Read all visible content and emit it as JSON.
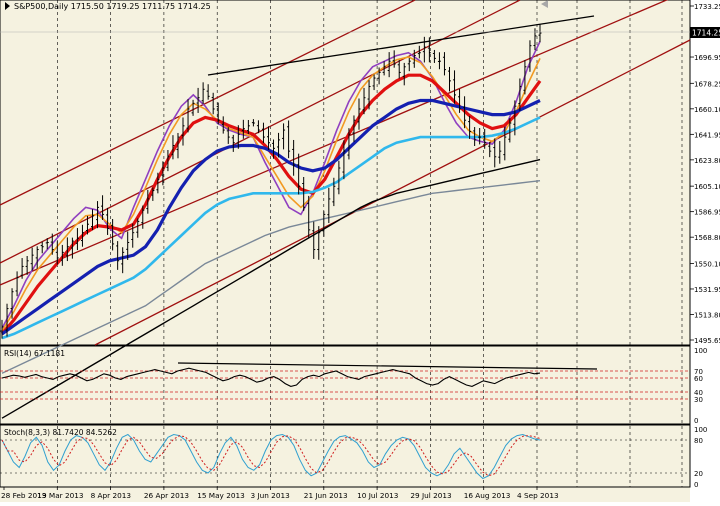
{
  "colors": {
    "background": "#f5f2e0",
    "axis_panel": "#ffffff",
    "grid": "#000000",
    "candle": "#000000",
    "sma_purple": "#9040c0",
    "sma_orange": "#f29a22",
    "sma_red": "#e01010",
    "sma_blue": "#1420b0",
    "sma_cyan": "#30b8ec",
    "sma_gray": "#7a8898",
    "sma_black": "#000000",
    "channel": "#a01010",
    "trendline": "#000000",
    "rsi": "#000000",
    "rsi_levels": "#d02020",
    "stoch_main": "#30a0d0",
    "stoch_signal": "#d02020"
  },
  "chart_data": [
    {
      "type": "candlestick",
      "title": "S&P500,Daily  1715.50 1719.25 1711.75 1714.25",
      "ylim": [
        1495.65,
        1733.25
      ],
      "y_tick_labels": [
        "1733.25",
        "1714.25",
        "1696.95",
        "1678.25",
        "1660.10",
        "1641.95",
        "1623.80",
        "1605.10",
        "1586.95",
        "1568.80",
        "1550.10",
        "1531.95",
        "1513.80",
        "1495.65"
      ],
      "current_price_label": "1714.25",
      "x_tick_labels": [
        "28 Feb 2013",
        "19 Mar 2013",
        "8 Apr 2013",
        "26 Apr 2013",
        "15 May 2013",
        "3 Jun 2013",
        "21 Jun 2013",
        "10 Jul 2013",
        "29 Jul 2013",
        "16 Aug 2013",
        "4 Sep 2013"
      ],
      "close_approx": [
        1505,
        1518,
        1530,
        1540,
        1548,
        1552,
        1556,
        1560,
        1562,
        1565,
        1560,
        1554,
        1558,
        1562,
        1566,
        1568,
        1572,
        1578,
        1584,
        1590,
        1585,
        1575,
        1564,
        1552,
        1558,
        1565,
        1572,
        1580,
        1588,
        1596,
        1602,
        1610,
        1618,
        1626,
        1634,
        1640,
        1648,
        1660,
        1664,
        1668,
        1674,
        1669,
        1660,
        1652,
        1645,
        1640,
        1636,
        1642,
        1646,
        1648,
        1650,
        1645,
        1640,
        1636,
        1632,
        1638,
        1645,
        1630,
        1620,
        1605,
        1590,
        1574,
        1560,
        1572,
        1585,
        1596,
        1605,
        1618,
        1630,
        1642,
        1652,
        1660,
        1668,
        1676,
        1682,
        1686,
        1690,
        1694,
        1692,
        1686,
        1690,
        1694,
        1698,
        1700,
        1704,
        1700,
        1696,
        1694,
        1688,
        1680,
        1670,
        1660,
        1652,
        1644,
        1638,
        1640,
        1636,
        1630,
        1626,
        1630,
        1640,
        1650,
        1662,
        1676,
        1690,
        1705,
        1712,
        1714
      ],
      "moving_averages_approx": [
        {
          "color": "#9040c0",
          "values": [
            1504,
            1520,
            1538,
            1552,
            1562,
            1572,
            1582,
            1590,
            1588,
            1575,
            1568,
            1590,
            1610,
            1630,
            1648,
            1662,
            1670,
            1662,
            1650,
            1645,
            1642,
            1640,
            1622,
            1606,
            1590,
            1585,
            1600,
            1622,
            1645,
            1665,
            1680,
            1690,
            1694,
            1698,
            1700,
            1694,
            1682,
            1665,
            1650,
            1640,
            1637,
            1635,
            1645,
            1665,
            1690,
            1708
          ]
        },
        {
          "color": "#f29a22",
          "values": [
            1502,
            1516,
            1532,
            1546,
            1556,
            1566,
            1576,
            1584,
            1585,
            1578,
            1572,
            1585,
            1604,
            1624,
            1642,
            1656,
            1664,
            1660,
            1652,
            1646,
            1643,
            1640,
            1626,
            1612,
            1598,
            1590,
            1598,
            1616,
            1638,
            1658,
            1674,
            1684,
            1690,
            1695,
            1697,
            1693,
            1683,
            1670,
            1656,
            1645,
            1640,
            1637,
            1643,
            1658,
            1678,
            1696
          ]
        },
        {
          "color": "#e01010",
          "values": [
            1500,
            1510,
            1522,
            1534,
            1544,
            1554,
            1564,
            1572,
            1577,
            1576,
            1574,
            1578,
            1592,
            1610,
            1626,
            1640,
            1650,
            1654,
            1652,
            1648,
            1645,
            1642,
            1634,
            1624,
            1612,
            1603,
            1600,
            1610,
            1626,
            1642,
            1656,
            1666,
            1674,
            1680,
            1684,
            1684,
            1680,
            1672,
            1664,
            1656,
            1650,
            1646,
            1648,
            1656,
            1668,
            1680
          ]
        },
        {
          "color": "#1420b0",
          "values": [
            1500,
            1506,
            1512,
            1518,
            1524,
            1530,
            1536,
            1542,
            1548,
            1552,
            1554,
            1556,
            1562,
            1574,
            1590,
            1604,
            1616,
            1624,
            1630,
            1633,
            1634,
            1634,
            1632,
            1628,
            1622,
            1618,
            1616,
            1618,
            1624,
            1632,
            1640,
            1648,
            1654,
            1660,
            1664,
            1666,
            1666,
            1664,
            1662,
            1660,
            1658,
            1656,
            1656,
            1658,
            1662,
            1666
          ]
        },
        {
          "color": "#30b8ec",
          "values": [
            1497,
            1500,
            1504,
            1508,
            1512,
            1516,
            1520,
            1524,
            1528,
            1532,
            1536,
            1540,
            1546,
            1554,
            1562,
            1570,
            1578,
            1586,
            1592,
            1596,
            1598,
            1600,
            1600,
            1600,
            1600,
            1600,
            1601,
            1604,
            1608,
            1614,
            1620,
            1626,
            1632,
            1636,
            1638,
            1640,
            1640,
            1640,
            1640,
            1640,
            1640,
            1641,
            1643,
            1646,
            1650,
            1654
          ]
        },
        {
          "color": "#7a8898",
          "values": [
            1472,
            1476,
            1480,
            1484,
            1488,
            1492,
            1496,
            1500,
            1504,
            1508,
            1512,
            1516,
            1520,
            1526,
            1532,
            1538,
            1544,
            1550,
            1554,
            1558,
            1562,
            1566,
            1570,
            1573,
            1576,
            1578,
            1580,
            1582,
            1584,
            1586,
            1588,
            1590,
            1592,
            1594,
            1596,
            1598,
            1600,
            1601,
            1602,
            1603,
            1604,
            1605,
            1606,
            1607,
            1608,
            1609
          ]
        },
        {
          "color": "#000000",
          "values": [
            1440,
            1445,
            1450,
            1455,
            1460,
            1465,
            1470,
            1475,
            1480,
            1485,
            1490,
            1495,
            1500,
            1505,
            1510,
            1515,
            1520,
            1525,
            1530,
            1535,
            1540,
            1545,
            1550,
            1555,
            1560,
            1565,
            1570,
            1575,
            1580,
            1585,
            1590,
            1594,
            1597,
            1600,
            1602,
            1604,
            1606,
            1608,
            1610,
            1612,
            1614,
            1616,
            1618,
            1620,
            1622,
            1624
          ]
        }
      ]
    },
    {
      "type": "line",
      "title": "RSI(14) 67.1181",
      "ylim": [
        0,
        100
      ],
      "y_tick_labels": [
        "100",
        "70",
        "60",
        "40",
        "30",
        "0"
      ],
      "levels": [
        70,
        60,
        40,
        30
      ],
      "values_approx": [
        60,
        62,
        64,
        63,
        61,
        63,
        65,
        62,
        60,
        58,
        62,
        64,
        66,
        64,
        60,
        56,
        58,
        62,
        66,
        64,
        60,
        58,
        62,
        64,
        66,
        68,
        70,
        72,
        70,
        68,
        66,
        70,
        72,
        74,
        72,
        70,
        68,
        64,
        60,
        56,
        58,
        62,
        64,
        62,
        58,
        54,
        56,
        60,
        62,
        58,
        52,
        48,
        50,
        58,
        62,
        64,
        62,
        66,
        68,
        70,
        66,
        62,
        60,
        58,
        62,
        64,
        66,
        68,
        70,
        72,
        70,
        68,
        66,
        60,
        56,
        52,
        50,
        52,
        58,
        62,
        58,
        54,
        50,
        48,
        52,
        56,
        54,
        52,
        56,
        60,
        62,
        64,
        66,
        68,
        66,
        67
      ]
    },
    {
      "type": "line",
      "title": "Stoch(8,3,3) 81.7420 84.5262",
      "ylim": [
        0,
        100
      ],
      "y_tick_labels": [
        "100",
        "80",
        "20",
        "0"
      ],
      "levels": [
        80,
        20
      ],
      "series": [
        {
          "name": "main",
          "values_approx": [
            80,
            60,
            40,
            30,
            50,
            75,
            85,
            70,
            40,
            25,
            35,
            60,
            80,
            88,
            85,
            75,
            55,
            35,
            25,
            40,
            65,
            85,
            90,
            80,
            60,
            45,
            40,
            55,
            70,
            85,
            90,
            88,
            80,
            60,
            40,
            25,
            20,
            30,
            55,
            75,
            85,
            70,
            45,
            30,
            25,
            35,
            60,
            80,
            88,
            90,
            85,
            70,
            45,
            25,
            15,
            20,
            40,
            60,
            78,
            86,
            88,
            82,
            75,
            60,
            40,
            30,
            35,
            55,
            70,
            80,
            85,
            82,
            70,
            50,
            30,
            20,
            15,
            20,
            35,
            55,
            65,
            50,
            35,
            20,
            10,
            15,
            30,
            50,
            70,
            82,
            88,
            90,
            86,
            82,
            80
          ]
        }
      ]
    }
  ]
}
